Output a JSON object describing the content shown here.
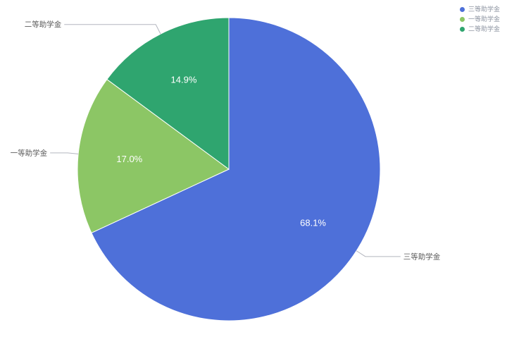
{
  "chart_data": {
    "type": "pie",
    "categories": [
      "三等助学金",
      "一等助学金",
      "二等助学金"
    ],
    "values": [
      68.1,
      17.0,
      14.9
    ],
    "unit": "%",
    "percent_labels": [
      "68.1%",
      "17.0%",
      "14.9%"
    ],
    "colors": [
      "#4e70d9",
      "#8cc665",
      "#2fa56f"
    ],
    "start_angle": "top",
    "direction": "clockwise",
    "inside_label_color": "#ffffff",
    "outside_label_color": "#5b5b5b",
    "legend": {
      "position": "top-right",
      "items": [
        "三等助学金",
        "一等助学金",
        "二等助学金"
      ]
    }
  }
}
